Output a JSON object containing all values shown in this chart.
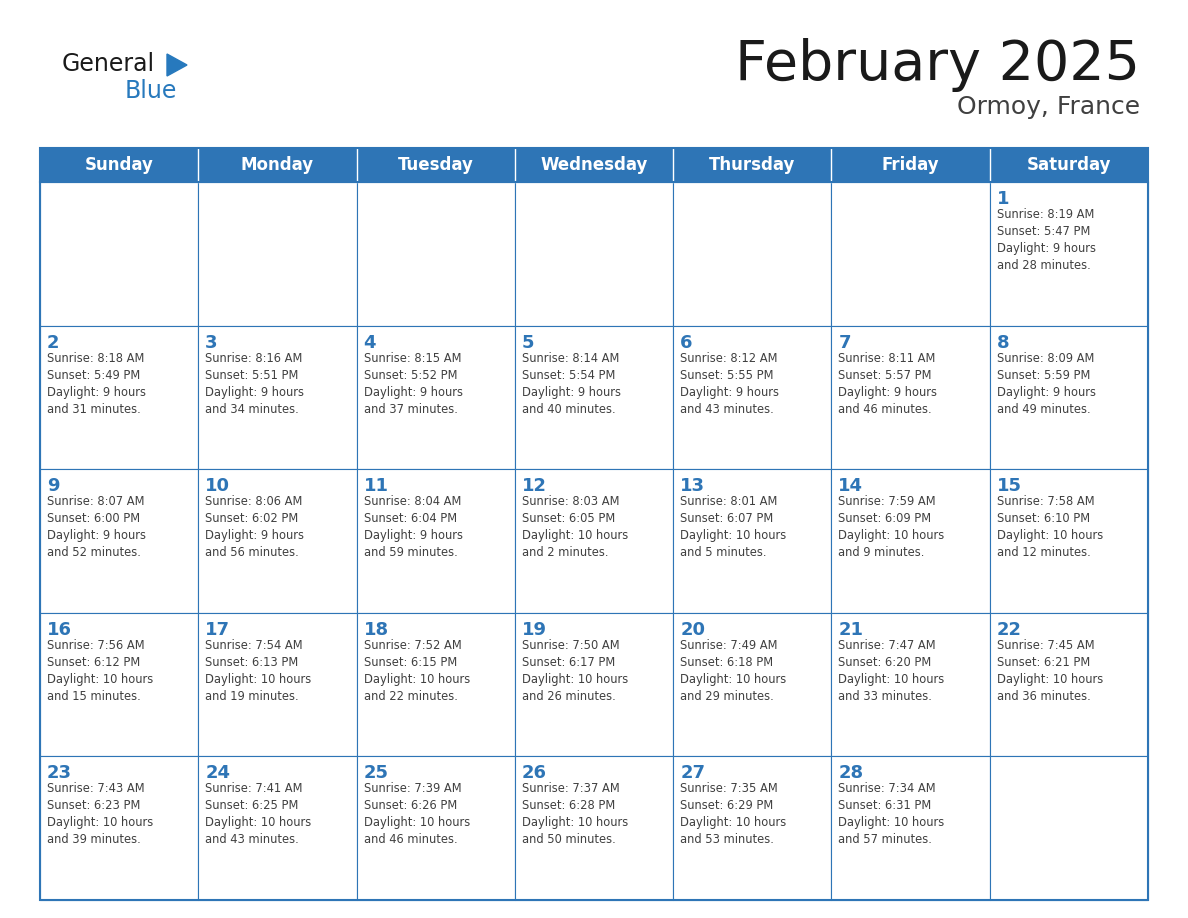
{
  "title": "February 2025",
  "subtitle": "Ormoy, France",
  "days_of_week": [
    "Sunday",
    "Monday",
    "Tuesday",
    "Wednesday",
    "Thursday",
    "Friday",
    "Saturday"
  ],
  "header_bg": "#2E75B6",
  "header_text": "#FFFFFF",
  "cell_bg": "#FFFFFF",
  "cell_border": "#2E75B6",
  "day_number_color": "#2E75B6",
  "cell_text_color": "#404040",
  "title_color": "#1a1a1a",
  "subtitle_color": "#404040",
  "logo_general_color": "#1a1a1a",
  "logo_blue_color": "#2779BD",
  "weeks": [
    [
      null,
      null,
      null,
      null,
      null,
      null,
      1
    ],
    [
      2,
      3,
      4,
      5,
      6,
      7,
      8
    ],
    [
      9,
      10,
      11,
      12,
      13,
      14,
      15
    ],
    [
      16,
      17,
      18,
      19,
      20,
      21,
      22
    ],
    [
      23,
      24,
      25,
      26,
      27,
      28,
      null
    ]
  ],
  "day_data": {
    "1": {
      "sunrise": "8:19 AM",
      "sunset": "5:47 PM",
      "daylight": "9 hours\nand 28 minutes."
    },
    "2": {
      "sunrise": "8:18 AM",
      "sunset": "5:49 PM",
      "daylight": "9 hours\nand 31 minutes."
    },
    "3": {
      "sunrise": "8:16 AM",
      "sunset": "5:51 PM",
      "daylight": "9 hours\nand 34 minutes."
    },
    "4": {
      "sunrise": "8:15 AM",
      "sunset": "5:52 PM",
      "daylight": "9 hours\nand 37 minutes."
    },
    "5": {
      "sunrise": "8:14 AM",
      "sunset": "5:54 PM",
      "daylight": "9 hours\nand 40 minutes."
    },
    "6": {
      "sunrise": "8:12 AM",
      "sunset": "5:55 PM",
      "daylight": "9 hours\nand 43 minutes."
    },
    "7": {
      "sunrise": "8:11 AM",
      "sunset": "5:57 PM",
      "daylight": "9 hours\nand 46 minutes."
    },
    "8": {
      "sunrise": "8:09 AM",
      "sunset": "5:59 PM",
      "daylight": "9 hours\nand 49 minutes."
    },
    "9": {
      "sunrise": "8:07 AM",
      "sunset": "6:00 PM",
      "daylight": "9 hours\nand 52 minutes."
    },
    "10": {
      "sunrise": "8:06 AM",
      "sunset": "6:02 PM",
      "daylight": "9 hours\nand 56 minutes."
    },
    "11": {
      "sunrise": "8:04 AM",
      "sunset": "6:04 PM",
      "daylight": "9 hours\nand 59 minutes."
    },
    "12": {
      "sunrise": "8:03 AM",
      "sunset": "6:05 PM",
      "daylight": "10 hours\nand 2 minutes."
    },
    "13": {
      "sunrise": "8:01 AM",
      "sunset": "6:07 PM",
      "daylight": "10 hours\nand 5 minutes."
    },
    "14": {
      "sunrise": "7:59 AM",
      "sunset": "6:09 PM",
      "daylight": "10 hours\nand 9 minutes."
    },
    "15": {
      "sunrise": "7:58 AM",
      "sunset": "6:10 PM",
      "daylight": "10 hours\nand 12 minutes."
    },
    "16": {
      "sunrise": "7:56 AM",
      "sunset": "6:12 PM",
      "daylight": "10 hours\nand 15 minutes."
    },
    "17": {
      "sunrise": "7:54 AM",
      "sunset": "6:13 PM",
      "daylight": "10 hours\nand 19 minutes."
    },
    "18": {
      "sunrise": "7:52 AM",
      "sunset": "6:15 PM",
      "daylight": "10 hours\nand 22 minutes."
    },
    "19": {
      "sunrise": "7:50 AM",
      "sunset": "6:17 PM",
      "daylight": "10 hours\nand 26 minutes."
    },
    "20": {
      "sunrise": "7:49 AM",
      "sunset": "6:18 PM",
      "daylight": "10 hours\nand 29 minutes."
    },
    "21": {
      "sunrise": "7:47 AM",
      "sunset": "6:20 PM",
      "daylight": "10 hours\nand 33 minutes."
    },
    "22": {
      "sunrise": "7:45 AM",
      "sunset": "6:21 PM",
      "daylight": "10 hours\nand 36 minutes."
    },
    "23": {
      "sunrise": "7:43 AM",
      "sunset": "6:23 PM",
      "daylight": "10 hours\nand 39 minutes."
    },
    "24": {
      "sunrise": "7:41 AM",
      "sunset": "6:25 PM",
      "daylight": "10 hours\nand 43 minutes."
    },
    "25": {
      "sunrise": "7:39 AM",
      "sunset": "6:26 PM",
      "daylight": "10 hours\nand 46 minutes."
    },
    "26": {
      "sunrise": "7:37 AM",
      "sunset": "6:28 PM",
      "daylight": "10 hours\nand 50 minutes."
    },
    "27": {
      "sunrise": "7:35 AM",
      "sunset": "6:29 PM",
      "daylight": "10 hours\nand 53 minutes."
    },
    "28": {
      "sunrise": "7:34 AM",
      "sunset": "6:31 PM",
      "daylight": "10 hours\nand 57 minutes."
    }
  }
}
